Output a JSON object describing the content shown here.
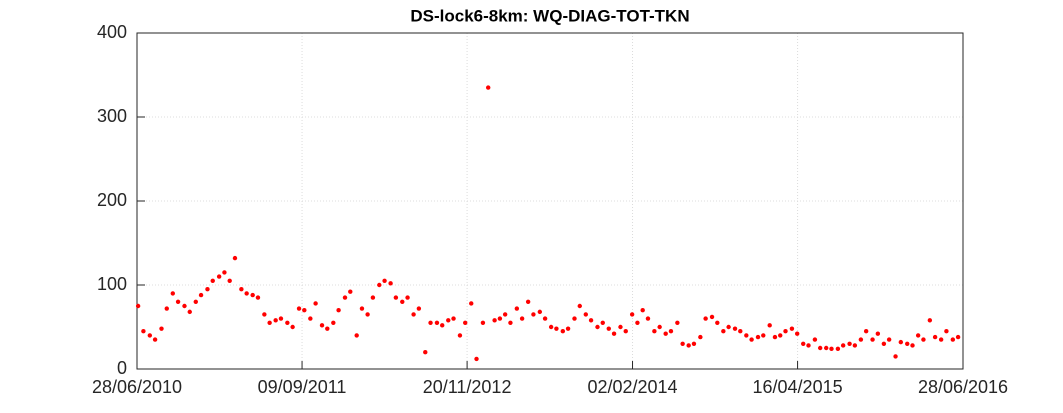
{
  "chart_data": {
    "type": "scatter",
    "title": "DS-lock6-8km: WQ-DIAG-TOT-TKN",
    "series": [
      {
        "color": "#ff0000",
        "x": [
          "01/07/2010",
          "15/07/2010",
          "01/08/2010",
          "15/08/2010",
          "01/09/2010",
          "15/09/2010",
          "01/10/2010",
          "15/10/2010",
          "01/11/2010",
          "15/11/2010",
          "01/12/2010",
          "15/12/2010",
          "01/01/2011",
          "15/01/2011",
          "01/02/2011",
          "15/02/2011",
          "01/03/2011",
          "15/03/2011",
          "01/04/2011",
          "15/04/2011",
          "01/05/2011",
          "15/05/2011",
          "01/06/2011",
          "15/06/2011",
          "01/07/2011",
          "15/07/2011",
          "01/08/2011",
          "15/08/2011",
          "01/09/2011",
          "15/09/2011",
          "01/10/2011",
          "15/10/2011",
          "01/11/2011",
          "15/11/2011",
          "01/12/2011",
          "15/12/2011",
          "01/01/2012",
          "15/01/2012",
          "01/02/2012",
          "15/02/2012",
          "01/03/2012",
          "15/03/2012",
          "01/04/2012",
          "15/04/2012",
          "01/05/2012",
          "15/05/2012",
          "01/06/2012",
          "15/06/2012",
          "01/07/2012",
          "15/07/2012",
          "01/08/2012",
          "15/08/2012",
          "01/09/2012",
          "15/09/2012",
          "01/10/2012",
          "15/10/2012",
          "01/11/2012",
          "15/11/2012",
          "01/12/2012",
          "15/12/2012",
          "01/01/2013",
          "15/01/2013",
          "01/02/2013",
          "15/02/2013",
          "01/03/2013",
          "15/03/2013",
          "01/04/2013",
          "15/04/2013",
          "01/05/2013",
          "15/05/2013",
          "01/06/2013",
          "15/06/2013",
          "01/07/2013",
          "15/07/2013",
          "01/08/2013",
          "15/08/2013",
          "01/09/2013",
          "15/09/2013",
          "01/10/2013",
          "15/10/2013",
          "01/11/2013",
          "15/11/2013",
          "01/12/2013",
          "15/12/2013",
          "01/01/2014",
          "15/01/2014",
          "01/02/2014",
          "15/02/2014",
          "01/03/2014",
          "15/03/2014",
          "01/04/2014",
          "15/04/2014",
          "01/05/2014",
          "15/05/2014",
          "01/06/2014",
          "15/06/2014",
          "01/07/2014",
          "15/07/2014",
          "01/08/2014",
          "15/08/2014",
          "01/09/2014",
          "15/09/2014",
          "01/10/2014",
          "15/10/2014",
          "01/11/2014",
          "15/11/2014",
          "01/12/2014",
          "15/12/2014",
          "01/01/2015",
          "15/01/2015",
          "01/02/2015",
          "15/02/2015",
          "01/03/2015",
          "15/03/2015",
          "01/04/2015",
          "15/04/2015",
          "01/05/2015",
          "15/05/2015",
          "01/06/2015",
          "15/06/2015",
          "01/07/2015",
          "15/07/2015",
          "01/08/2015",
          "15/08/2015",
          "01/09/2015",
          "15/09/2015",
          "01/10/2015",
          "15/10/2015",
          "01/11/2015",
          "15/11/2015",
          "01/12/2015",
          "15/12/2015",
          "01/01/2016",
          "15/01/2016",
          "01/02/2016",
          "15/02/2016",
          "01/03/2016",
          "15/03/2016",
          "01/04/2016",
          "15/04/2016",
          "01/05/2016",
          "15/05/2016",
          "01/06/2016",
          "15/06/2016"
        ],
        "values": [
          75,
          45,
          40,
          35,
          48,
          72,
          90,
          80,
          75,
          68,
          80,
          88,
          95,
          105,
          110,
          115,
          105,
          132,
          95,
          90,
          88,
          85,
          65,
          55,
          58,
          60,
          55,
          50,
          72,
          70,
          60,
          78,
          52,
          48,
          55,
          70,
          85,
          92,
          40,
          72,
          65,
          85,
          100,
          105,
          102,
          85,
          80,
          85,
          65,
          72,
          20,
          55,
          55,
          52,
          58,
          60,
          40,
          55,
          78,
          12,
          55,
          335,
          58,
          60,
          65,
          55,
          72,
          60,
          80,
          65,
          68,
          60,
          50,
          48,
          45,
          48,
          60,
          75,
          65,
          58,
          50,
          55,
          48,
          42,
          50,
          45,
          65,
          55,
          70,
          60,
          45,
          50,
          42,
          45,
          55,
          30,
          28,
          30,
          38,
          60,
          62,
          55,
          45,
          50,
          48,
          45,
          40,
          35,
          38,
          40,
          52,
          38,
          40,
          45,
          48,
          42,
          30,
          28,
          35,
          25,
          25,
          24,
          24,
          28,
          30,
          28,
          35,
          45,
          35,
          42,
          30,
          35,
          15,
          32,
          30,
          28,
          40,
          35,
          58,
          38,
          35,
          45,
          35,
          38
        ]
      }
    ],
    "xlim": [
      "28/06/2010",
      "28/06/2016"
    ],
    "xticks": [
      "28/06/2010",
      "09/09/2011",
      "20/11/2012",
      "02/02/2014",
      "16/04/2015",
      "28/06/2016"
    ],
    "ylim": [
      0,
      400
    ],
    "yticks": [
      0,
      100,
      200,
      300,
      400
    ],
    "grid": true
  }
}
